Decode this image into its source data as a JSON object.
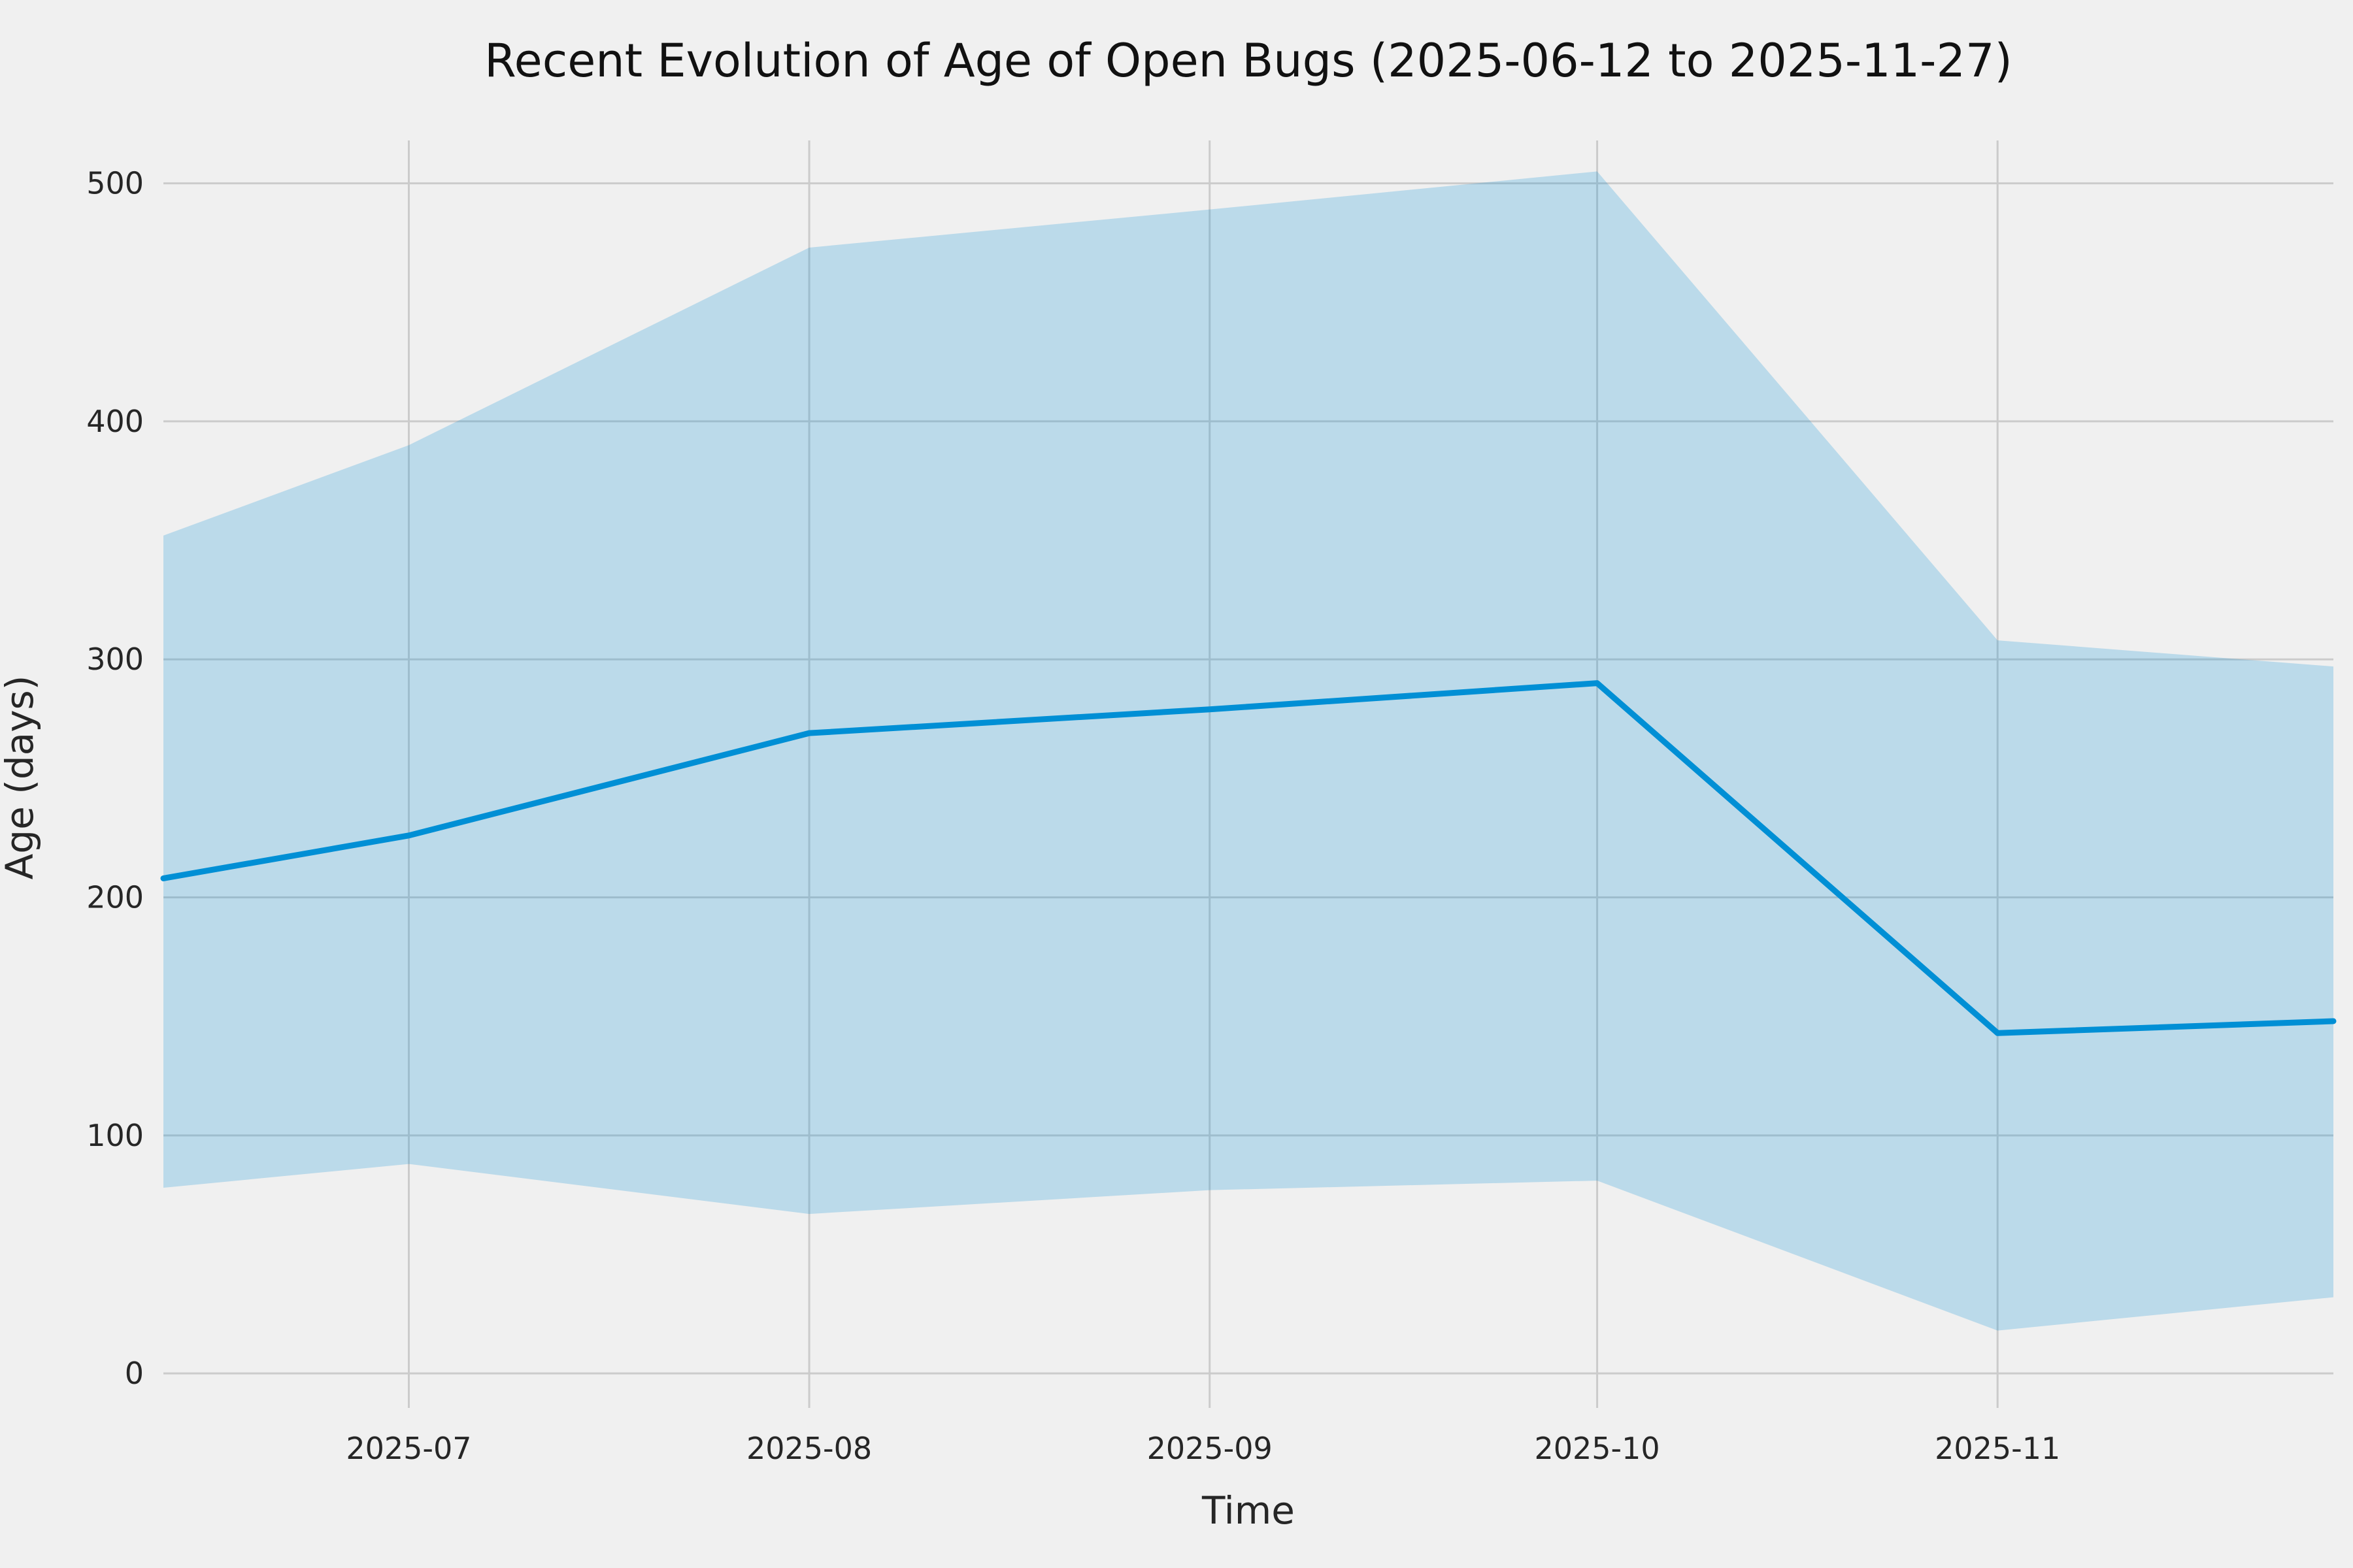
{
  "chart_data": {
    "type": "line",
    "title": "Recent Evolution of Age of Open Bugs (2025-06-12 to 2025-11-27)",
    "xlabel": "Time",
    "ylabel": "Age (days)",
    "x_dates": [
      "2025-06-12",
      "2025-07-01",
      "2025-08-01",
      "2025-09-01",
      "2025-10-01",
      "2025-11-01",
      "2025-11-27"
    ],
    "series": [
      {
        "name": "median_age_line",
        "values": [
          208,
          226,
          269,
          279,
          290,
          143,
          148
        ]
      },
      {
        "name": "band_upper",
        "values": [
          352,
          390,
          473,
          489,
          505,
          308,
          297
        ]
      },
      {
        "name": "band_lower",
        "values": [
          78,
          88,
          67,
          77,
          81,
          18,
          32
        ]
      }
    ],
    "x_ticks": [
      {
        "date": "2025-07-01",
        "label": "2025-07"
      },
      {
        "date": "2025-08-01",
        "label": "2025-08"
      },
      {
        "date": "2025-09-01",
        "label": "2025-09"
      },
      {
        "date": "2025-10-01",
        "label": "2025-10"
      },
      {
        "date": "2025-11-01",
        "label": "2025-11"
      }
    ],
    "y_ticks": [
      0,
      100,
      200,
      300,
      400,
      500
    ],
    "ylim": [
      -14.5,
      518
    ],
    "grid": true,
    "legend": "none",
    "colors": {
      "line": "#008fd5",
      "band": "rgba(0,143,213,0.22)",
      "background": "#f0f0f0",
      "grid": "#cbcbcb",
      "text": "#262626"
    }
  }
}
